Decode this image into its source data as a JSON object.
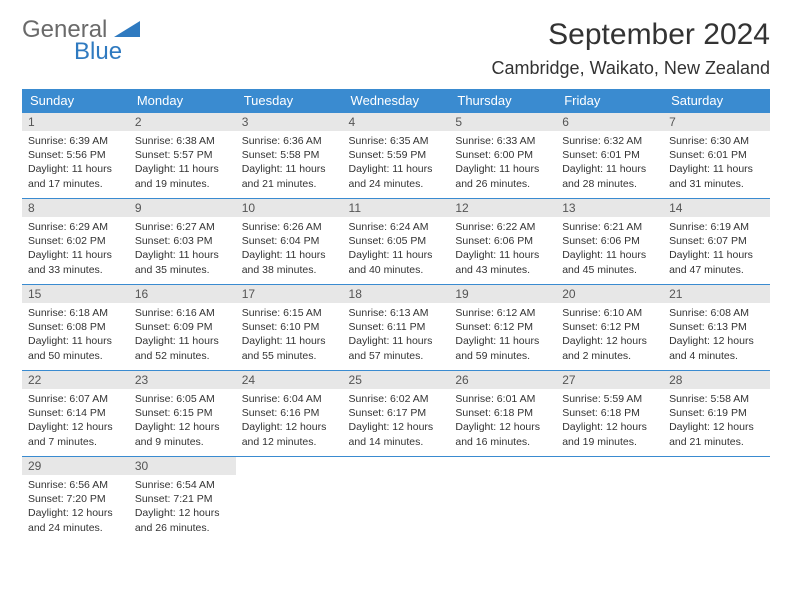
{
  "brand": {
    "general": "General",
    "blue": "Blue",
    "shape_color": "#2f7ac0"
  },
  "header": {
    "month_title": "September 2024",
    "location": "Cambridge, Waikato, New Zealand"
  },
  "colors": {
    "header_bg": "#3a8bd0",
    "header_text": "#ffffff",
    "strip_bg": "#e7e7e7",
    "rule": "#3a8bd0"
  },
  "day_names": [
    "Sunday",
    "Monday",
    "Tuesday",
    "Wednesday",
    "Thursday",
    "Friday",
    "Saturday"
  ],
  "weeks": [
    [
      {
        "n": "1",
        "sunrise": "Sunrise: 6:39 AM",
        "sunset": "Sunset: 5:56 PM",
        "day1": "Daylight: 11 hours",
        "day2": "and 17 minutes."
      },
      {
        "n": "2",
        "sunrise": "Sunrise: 6:38 AM",
        "sunset": "Sunset: 5:57 PM",
        "day1": "Daylight: 11 hours",
        "day2": "and 19 minutes."
      },
      {
        "n": "3",
        "sunrise": "Sunrise: 6:36 AM",
        "sunset": "Sunset: 5:58 PM",
        "day1": "Daylight: 11 hours",
        "day2": "and 21 minutes."
      },
      {
        "n": "4",
        "sunrise": "Sunrise: 6:35 AM",
        "sunset": "Sunset: 5:59 PM",
        "day1": "Daylight: 11 hours",
        "day2": "and 24 minutes."
      },
      {
        "n": "5",
        "sunrise": "Sunrise: 6:33 AM",
        "sunset": "Sunset: 6:00 PM",
        "day1": "Daylight: 11 hours",
        "day2": "and 26 minutes."
      },
      {
        "n": "6",
        "sunrise": "Sunrise: 6:32 AM",
        "sunset": "Sunset: 6:01 PM",
        "day1": "Daylight: 11 hours",
        "day2": "and 28 minutes."
      },
      {
        "n": "7",
        "sunrise": "Sunrise: 6:30 AM",
        "sunset": "Sunset: 6:01 PM",
        "day1": "Daylight: 11 hours",
        "day2": "and 31 minutes."
      }
    ],
    [
      {
        "n": "8",
        "sunrise": "Sunrise: 6:29 AM",
        "sunset": "Sunset: 6:02 PM",
        "day1": "Daylight: 11 hours",
        "day2": "and 33 minutes."
      },
      {
        "n": "9",
        "sunrise": "Sunrise: 6:27 AM",
        "sunset": "Sunset: 6:03 PM",
        "day1": "Daylight: 11 hours",
        "day2": "and 35 minutes."
      },
      {
        "n": "10",
        "sunrise": "Sunrise: 6:26 AM",
        "sunset": "Sunset: 6:04 PM",
        "day1": "Daylight: 11 hours",
        "day2": "and 38 minutes."
      },
      {
        "n": "11",
        "sunrise": "Sunrise: 6:24 AM",
        "sunset": "Sunset: 6:05 PM",
        "day1": "Daylight: 11 hours",
        "day2": "and 40 minutes."
      },
      {
        "n": "12",
        "sunrise": "Sunrise: 6:22 AM",
        "sunset": "Sunset: 6:06 PM",
        "day1": "Daylight: 11 hours",
        "day2": "and 43 minutes."
      },
      {
        "n": "13",
        "sunrise": "Sunrise: 6:21 AM",
        "sunset": "Sunset: 6:06 PM",
        "day1": "Daylight: 11 hours",
        "day2": "and 45 minutes."
      },
      {
        "n": "14",
        "sunrise": "Sunrise: 6:19 AM",
        "sunset": "Sunset: 6:07 PM",
        "day1": "Daylight: 11 hours",
        "day2": "and 47 minutes."
      }
    ],
    [
      {
        "n": "15",
        "sunrise": "Sunrise: 6:18 AM",
        "sunset": "Sunset: 6:08 PM",
        "day1": "Daylight: 11 hours",
        "day2": "and 50 minutes."
      },
      {
        "n": "16",
        "sunrise": "Sunrise: 6:16 AM",
        "sunset": "Sunset: 6:09 PM",
        "day1": "Daylight: 11 hours",
        "day2": "and 52 minutes."
      },
      {
        "n": "17",
        "sunrise": "Sunrise: 6:15 AM",
        "sunset": "Sunset: 6:10 PM",
        "day1": "Daylight: 11 hours",
        "day2": "and 55 minutes."
      },
      {
        "n": "18",
        "sunrise": "Sunrise: 6:13 AM",
        "sunset": "Sunset: 6:11 PM",
        "day1": "Daylight: 11 hours",
        "day2": "and 57 minutes."
      },
      {
        "n": "19",
        "sunrise": "Sunrise: 6:12 AM",
        "sunset": "Sunset: 6:12 PM",
        "day1": "Daylight: 11 hours",
        "day2": "and 59 minutes."
      },
      {
        "n": "20",
        "sunrise": "Sunrise: 6:10 AM",
        "sunset": "Sunset: 6:12 PM",
        "day1": "Daylight: 12 hours",
        "day2": "and 2 minutes."
      },
      {
        "n": "21",
        "sunrise": "Sunrise: 6:08 AM",
        "sunset": "Sunset: 6:13 PM",
        "day1": "Daylight: 12 hours",
        "day2": "and 4 minutes."
      }
    ],
    [
      {
        "n": "22",
        "sunrise": "Sunrise: 6:07 AM",
        "sunset": "Sunset: 6:14 PM",
        "day1": "Daylight: 12 hours",
        "day2": "and 7 minutes."
      },
      {
        "n": "23",
        "sunrise": "Sunrise: 6:05 AM",
        "sunset": "Sunset: 6:15 PM",
        "day1": "Daylight: 12 hours",
        "day2": "and 9 minutes."
      },
      {
        "n": "24",
        "sunrise": "Sunrise: 6:04 AM",
        "sunset": "Sunset: 6:16 PM",
        "day1": "Daylight: 12 hours",
        "day2": "and 12 minutes."
      },
      {
        "n": "25",
        "sunrise": "Sunrise: 6:02 AM",
        "sunset": "Sunset: 6:17 PM",
        "day1": "Daylight: 12 hours",
        "day2": "and 14 minutes."
      },
      {
        "n": "26",
        "sunrise": "Sunrise: 6:01 AM",
        "sunset": "Sunset: 6:18 PM",
        "day1": "Daylight: 12 hours",
        "day2": "and 16 minutes."
      },
      {
        "n": "27",
        "sunrise": "Sunrise: 5:59 AM",
        "sunset": "Sunset: 6:18 PM",
        "day1": "Daylight: 12 hours",
        "day2": "and 19 minutes."
      },
      {
        "n": "28",
        "sunrise": "Sunrise: 5:58 AM",
        "sunset": "Sunset: 6:19 PM",
        "day1": "Daylight: 12 hours",
        "day2": "and 21 minutes."
      }
    ],
    [
      {
        "n": "29",
        "sunrise": "Sunrise: 6:56 AM",
        "sunset": "Sunset: 7:20 PM",
        "day1": "Daylight: 12 hours",
        "day2": "and 24 minutes."
      },
      {
        "n": "30",
        "sunrise": "Sunrise: 6:54 AM",
        "sunset": "Sunset: 7:21 PM",
        "day1": "Daylight: 12 hours",
        "day2": "and 26 minutes."
      },
      null,
      null,
      null,
      null,
      null
    ]
  ]
}
